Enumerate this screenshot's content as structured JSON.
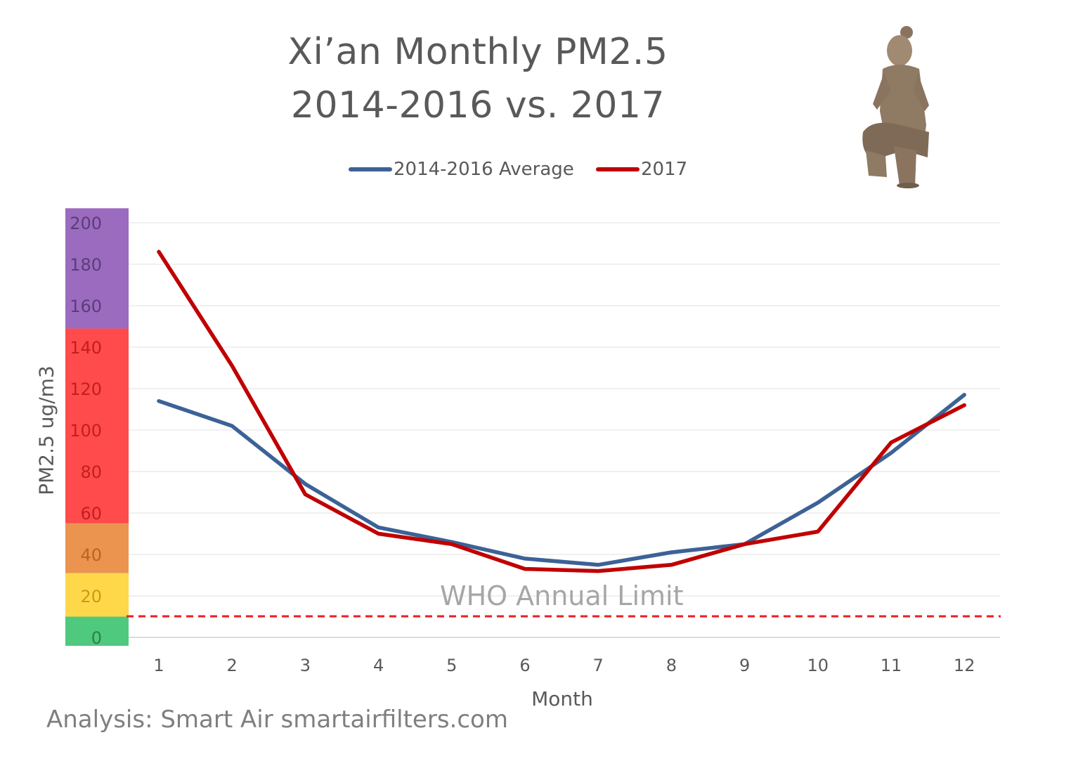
{
  "chart_data": {
    "type": "line",
    "title": "Xi’an Monthly PM2.5",
    "subtitle": "2014-2016 vs. 2017",
    "xlabel": "Month",
    "ylabel": "PM2.5 ug/m3",
    "x": [
      1,
      2,
      3,
      4,
      5,
      6,
      7,
      8,
      9,
      10,
      11,
      12
    ],
    "ylim": [
      0,
      200
    ],
    "yticks": [
      0,
      20,
      40,
      60,
      80,
      100,
      120,
      140,
      160,
      180,
      200
    ],
    "grid": true,
    "legend_position": "top",
    "series": [
      {
        "name": "2014-2016 Average",
        "color": "#3c6296",
        "values": [
          114,
          102,
          74,
          53,
          46,
          38,
          35,
          41,
          45,
          65,
          89,
          117
        ]
      },
      {
        "name": "2017",
        "color": "#c00000",
        "values": [
          186,
          131,
          69,
          50,
          45,
          33,
          32,
          35,
          45,
          51,
          94,
          112
        ]
      }
    ],
    "reference_line": {
      "label": "WHO Annual Limit",
      "value": 10,
      "color": "#ee1c25"
    },
    "aqi_bands": [
      {
        "from": 0,
        "to": 10,
        "color": "#4ec97d"
      },
      {
        "from": 10,
        "to": 31,
        "color": "#ffd84a"
      },
      {
        "from": 31,
        "to": 55,
        "color": "#eb9450"
      },
      {
        "from": 55,
        "to": 149,
        "color": "#ff4b4b"
      },
      {
        "from": 149,
        "to": 207,
        "color": "#9b6bbf"
      }
    ]
  },
  "footer": "Analysis: Smart Air smartairfilters.com",
  "decoration": {
    "image": "terracotta-warrior-figure"
  }
}
